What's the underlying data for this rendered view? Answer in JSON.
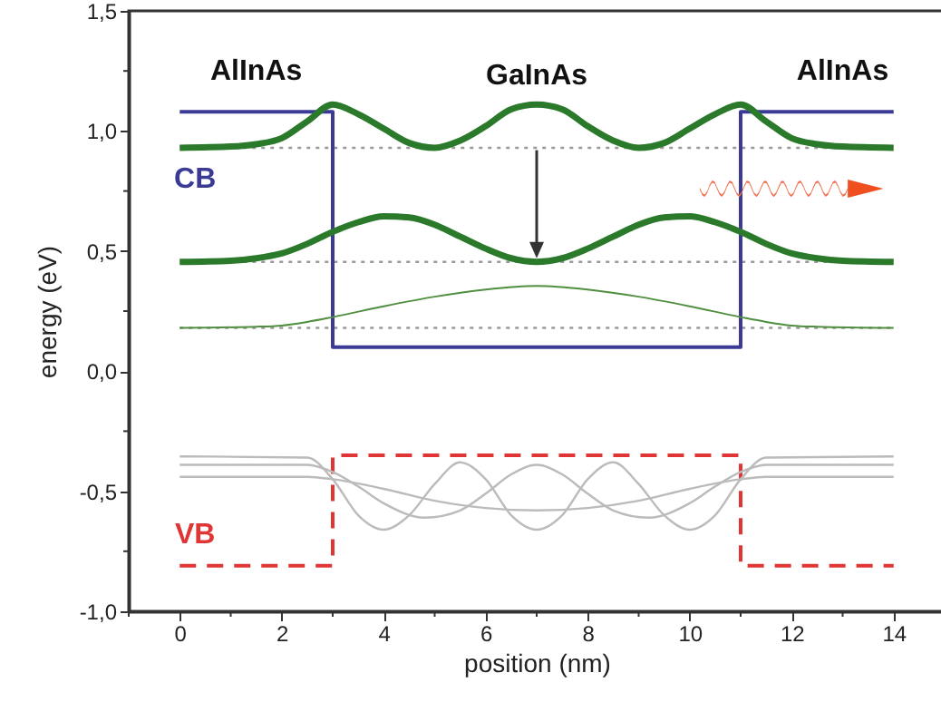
{
  "chart_data": {
    "type": "line",
    "xlabel": "position (nm)",
    "ylabel": "energy (eV)",
    "xlim": [
      -1,
      15
    ],
    "xticks": [
      {
        "value": -1,
        "label": null
      },
      0,
      {
        "value": 1,
        "label": null
      },
      2,
      {
        "value": 3,
        "label": null
      },
      4,
      {
        "value": 5,
        "label": null
      },
      6,
      {
        "value": 7,
        "label": null
      },
      8,
      {
        "value": 9,
        "label": null
      },
      10,
      {
        "value": 11,
        "label": null
      },
      12,
      {
        "value": 13,
        "label": null
      },
      14
    ],
    "ylim": [
      -1,
      1.5
    ],
    "yticks": [
      {
        "value": -1,
        "label": "-1,0"
      },
      {
        "value": -0.75,
        "label": null
      },
      {
        "value": -0.5,
        "label": "-0,5"
      },
      {
        "value": -0.25,
        "label": null
      },
      {
        "value": 0,
        "label": "0,0"
      },
      {
        "value": 0.25,
        "label": null
      },
      {
        "value": 0.5,
        "label": "0,5"
      },
      {
        "value": 0.75,
        "label": null
      },
      {
        "value": 1,
        "label": "1,0"
      },
      {
        "value": 1.25,
        "label": null
      },
      {
        "value": 1.5,
        "label": "1,5"
      }
    ],
    "grid": false,
    "marker": "none",
    "annotations": [
      "AlInAs",
      "GaInAs",
      "AlInAs",
      "CB",
      "VB"
    ],
    "series": [
      {
        "color": "#999999",
        "line_style": "dotted",
        "x": [
          0,
          14
        ],
        "values": [
          0.93,
          0.93
        ]
      },
      {
        "color": "#999999",
        "line_style": "dotted",
        "x": [
          0,
          14
        ],
        "values": [
          0.455,
          0.455
        ]
      },
      {
        "color": "#999999",
        "line_style": "dotted",
        "x": [
          0,
          14
        ],
        "values": [
          0.18,
          0.18
        ]
      },
      {
        "color": "#3b3b96",
        "line_style": "solid",
        "x": [
          0,
          3,
          3,
          11,
          11,
          14
        ],
        "values": [
          1.08,
          1.08,
          0.1,
          0.1,
          1.08,
          1.08
        ]
      },
      {
        "color": "#e03535",
        "line_style": "dashed",
        "x": [
          0,
          3,
          3,
          11,
          11,
          14
        ],
        "values": [
          -0.81,
          -0.81,
          -0.35,
          -0.35,
          -0.81,
          -0.81
        ]
      },
      {
        "color": "#2b7a2b",
        "line_style": "solid",
        "x": [
          0,
          1,
          1.5,
          2,
          2.5,
          3,
          3.5,
          4,
          4.5,
          5,
          5.5,
          6,
          6.5,
          7,
          7.5,
          8,
          8.5,
          9,
          9.5,
          10,
          10.5,
          11,
          11.5,
          12,
          12.5,
          13,
          14
        ],
        "values": [
          0.93,
          0.935,
          0.945,
          0.97,
          1.04,
          1.11,
          1.07,
          1.01,
          0.95,
          0.93,
          0.96,
          1.02,
          1.09,
          1.11,
          1.09,
          1.02,
          0.96,
          0.93,
          0.95,
          1.01,
          1.07,
          1.11,
          1.04,
          0.97,
          0.945,
          0.935,
          0.93
        ]
      },
      {
        "color": "#2b7a2b",
        "line_style": "solid",
        "x": [
          0,
          1,
          1.5,
          2,
          2.5,
          3,
          3.5,
          4,
          4.5,
          5,
          5.5,
          6,
          6.5,
          7,
          7.5,
          8,
          8.5,
          9,
          9.5,
          10,
          10.5,
          11,
          11.5,
          12,
          12.5,
          13,
          14
        ],
        "values": [
          0.455,
          0.46,
          0.47,
          0.49,
          0.53,
          0.58,
          0.62,
          0.645,
          0.64,
          0.61,
          0.56,
          0.51,
          0.47,
          0.455,
          0.47,
          0.51,
          0.56,
          0.61,
          0.64,
          0.645,
          0.62,
          0.58,
          0.53,
          0.49,
          0.47,
          0.46,
          0.455
        ]
      },
      {
        "color": "#4f8f3f",
        "line_style": "solid",
        "x": [
          0,
          1.5,
          2,
          2.5,
          3,
          4,
          5,
          6,
          7,
          8,
          9,
          10,
          11,
          11.5,
          12,
          12.5,
          14
        ],
        "values": [
          0.18,
          0.185,
          0.19,
          0.205,
          0.225,
          0.27,
          0.31,
          0.34,
          0.355,
          0.34,
          0.31,
          0.27,
          0.225,
          0.205,
          0.19,
          0.185,
          0.18
        ]
      },
      {
        "color": "#bbbbbb",
        "line_style": "solid",
        "x": [
          0,
          2.5,
          3,
          4,
          5,
          6,
          7,
          8,
          9,
          10,
          11,
          11.5,
          14
        ],
        "values": [
          -0.44,
          -0.44,
          -0.45,
          -0.49,
          -0.54,
          -0.57,
          -0.58,
          -0.57,
          -0.54,
          -0.49,
          -0.45,
          -0.44,
          -0.44
        ]
      },
      {
        "color": "#bbbbbb",
        "line_style": "solid",
        "x": [
          0,
          2.5,
          3,
          3.5,
          4,
          4.8,
          5.5,
          6,
          6.5,
          7,
          7.5,
          8,
          8.5,
          9.2,
          10,
          10.5,
          11,
          11.5,
          14
        ],
        "values": [
          -0.39,
          -0.39,
          -0.42,
          -0.48,
          -0.55,
          -0.61,
          -0.58,
          -0.51,
          -0.43,
          -0.39,
          -0.43,
          -0.51,
          -0.58,
          -0.61,
          -0.55,
          -0.48,
          -0.42,
          -0.39,
          -0.39
        ]
      },
      {
        "color": "#bbbbbb",
        "line_style": "solid",
        "x": [
          0,
          2.5,
          3,
          3.5,
          4,
          4.5,
          5,
          5.5,
          6,
          6.5,
          7,
          7.5,
          8,
          8.5,
          9,
          9.5,
          10,
          10.5,
          11,
          11.5,
          14
        ],
        "values": [
          -0.355,
          -0.36,
          -0.45,
          -0.6,
          -0.66,
          -0.6,
          -0.47,
          -0.38,
          -0.45,
          -0.6,
          -0.66,
          -0.6,
          -0.45,
          -0.38,
          -0.47,
          -0.6,
          -0.66,
          -0.6,
          -0.45,
          -0.36,
          -0.355
        ]
      }
    ]
  }
}
